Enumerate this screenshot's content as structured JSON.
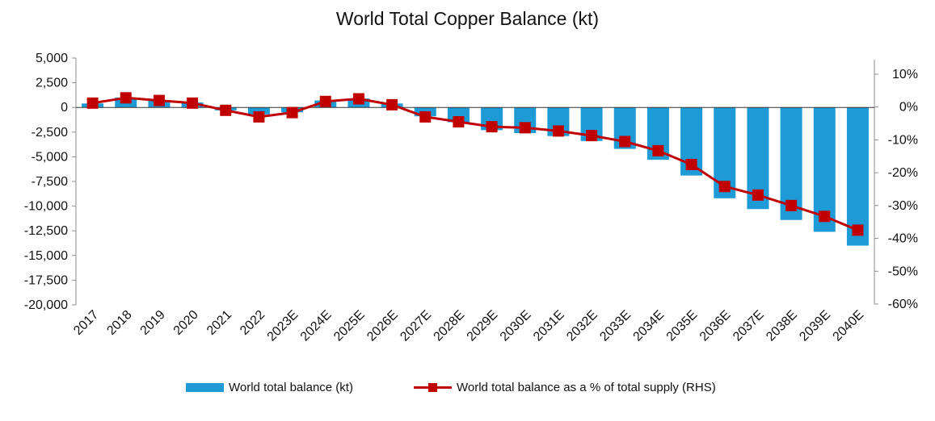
{
  "chart_data": {
    "type": "bar+line",
    "title": "World Total Copper Balance  (kt)",
    "categories": [
      "2017",
      "2018",
      "2019",
      "2020",
      "2021",
      "2022",
      "2023E",
      "2024E",
      "2025E",
      "2026E",
      "2027E",
      "2028E",
      "2029E",
      "2030E",
      "2031E",
      "2032E",
      "2033E",
      "2034E",
      "2035E",
      "2036E",
      "2037E",
      "2038E",
      "2039E",
      "2040E"
    ],
    "series": [
      {
        "name": "World total balance (kt)",
        "type": "bar",
        "axis": "left",
        "color": "#1e9ad6",
        "values": [
          400,
          1000,
          700,
          500,
          -300,
          -700,
          -500,
          700,
          900,
          400,
          -900,
          -1500,
          -2300,
          -2600,
          -2900,
          -3400,
          -4200,
          -5300,
          -6900,
          -9200,
          -10300,
          -11400,
          -12600,
          -14000
        ]
      },
      {
        "name": "World total balance as a % of total supply (RHS)",
        "type": "line",
        "axis": "right",
        "color": "#c00000",
        "marker": "square",
        "values": [
          1.2,
          2.8,
          2.0,
          1.2,
          -1.0,
          -3.0,
          -1.7,
          1.7,
          2.5,
          0.7,
          -3.0,
          -4.5,
          -6.0,
          -6.3,
          -7.3,
          -8.7,
          -10.5,
          -13.3,
          -17.5,
          -24.2,
          -26.8,
          -30.0,
          -33.3,
          -37.5
        ]
      }
    ],
    "y_left": {
      "ylim": [
        -20000,
        5000
      ],
      "ticks": [
        5000,
        2500,
        0,
        -2500,
        -5000,
        -7500,
        -10000,
        -12500,
        -15000,
        -17500,
        -20000
      ],
      "tick_labels": [
        "5,000",
        "2,500",
        "0",
        "-2,500",
        "-5,000",
        "-7,500",
        "-10,000",
        "-12,500",
        "-15,000",
        "-17,500",
        "-20,000"
      ]
    },
    "y_right": {
      "ylim": [
        -60,
        10
      ],
      "ticks": [
        10,
        0,
        -10,
        -20,
        -30,
        -40,
        -50,
        -60
      ],
      "tick_labels": [
        "10%",
        "0%",
        "-10%",
        "-20%",
        "-30%",
        "-40%",
        "-50%",
        "-60%"
      ]
    },
    "grid": false,
    "legend_position": "bottom"
  }
}
